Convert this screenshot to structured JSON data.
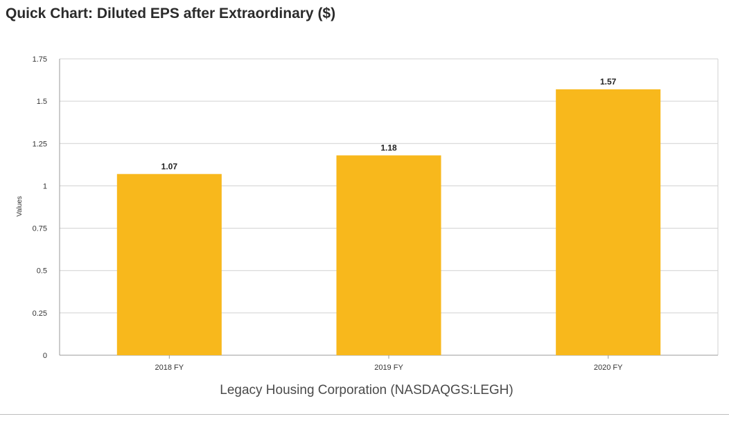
{
  "chart_data": {
    "type": "bar",
    "title": "Quick Chart: Diluted EPS after Extraordinary ($)",
    "subtitle": "Legacy Housing Corporation (NASDAQGS:LEGH)",
    "xlabel": "",
    "ylabel": "Values",
    "categories": [
      "2018 FY",
      "2019 FY",
      "2020 FY"
    ],
    "values": [
      1.07,
      1.18,
      1.57
    ],
    "data_labels": [
      "1.07",
      "1.18",
      "1.57"
    ],
    "ylim": [
      0,
      1.75
    ],
    "yticks": [
      0,
      0.25,
      0.5,
      0.75,
      1,
      1.25,
      1.5,
      1.75
    ],
    "ytick_labels": [
      "0",
      "0.25",
      "0.5",
      "0.75",
      "1",
      "1.25",
      "1.5",
      "1.75"
    ],
    "grid": true,
    "bar_color": "#F8B81C",
    "grid_color": "#D0D0D0"
  }
}
